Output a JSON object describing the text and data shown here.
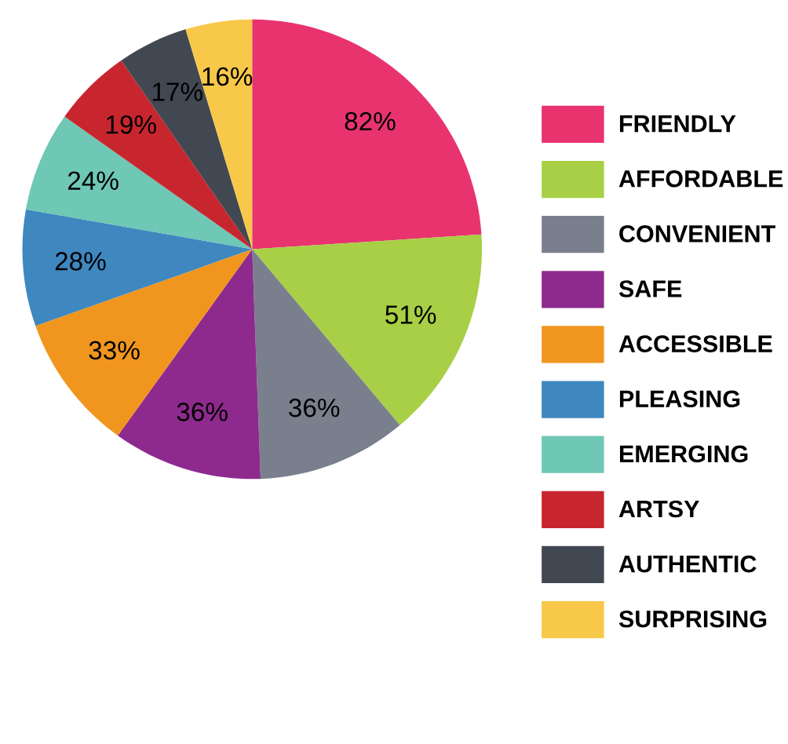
{
  "chart_data": {
    "type": "pie",
    "categories": [
      "FRIENDLY",
      "AFFORDABLE",
      "CONVENIENT",
      "SAFE",
      "ACCESSIBLE",
      "PLEASING",
      "EMERGING",
      "ARTSY",
      "AUTHENTIC",
      "SURPRISING"
    ],
    "values": [
      82,
      51,
      36,
      36,
      33,
      28,
      24,
      19,
      17,
      16
    ],
    "value_labels": [
      "82%",
      "51%",
      "36%",
      "36%",
      "33%",
      "28%",
      "24%",
      "19%",
      "17%",
      "16%"
    ],
    "colors": [
      "#e8336f",
      "#a8cf45",
      "#7a7f8d",
      "#8e2a8e",
      "#f0961e",
      "#3f87bf",
      "#6fc7b5",
      "#c8262f",
      "#424852",
      "#f7c84a"
    ],
    "legend": "right"
  }
}
